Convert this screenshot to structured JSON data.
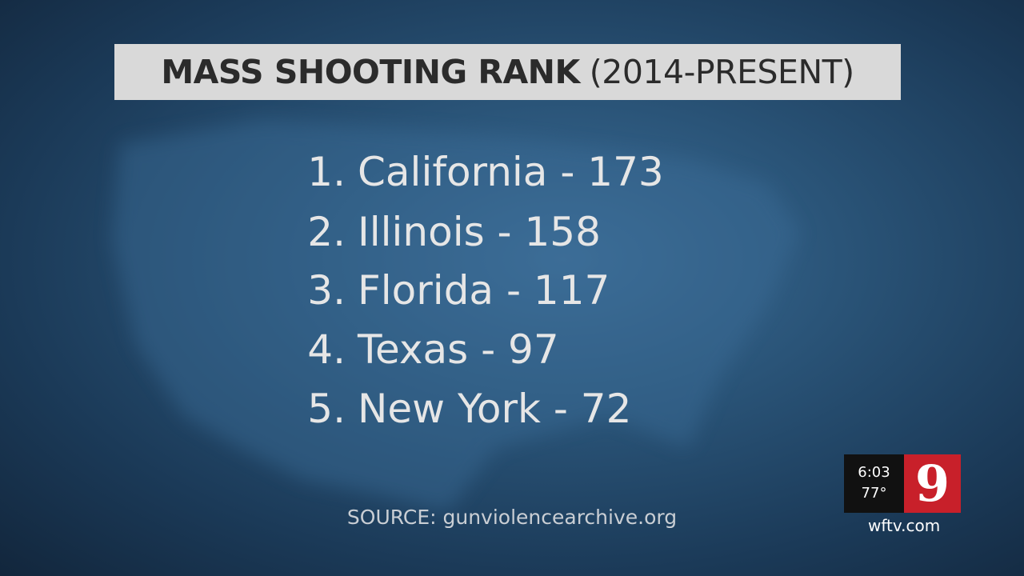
{
  "header": {
    "title": "MASS SHOOTING RANK",
    "subtitle": "(2014-PRESENT)"
  },
  "list": [
    {
      "rank": "1.",
      "label": "California - 173"
    },
    {
      "rank": "2.",
      "label": "Illinois - 158"
    },
    {
      "rank": "3.",
      "label": "Florida - 117"
    },
    {
      "rank": "4.",
      "label": "Texas - 97"
    },
    {
      "rank": "5.",
      "label": "New York - 72"
    }
  ],
  "source": "SOURCE: gunviolencearchive.org",
  "bug": {
    "time": "6:03",
    "temperature": "77°",
    "logo": "9",
    "website": "wftv.com"
  }
}
